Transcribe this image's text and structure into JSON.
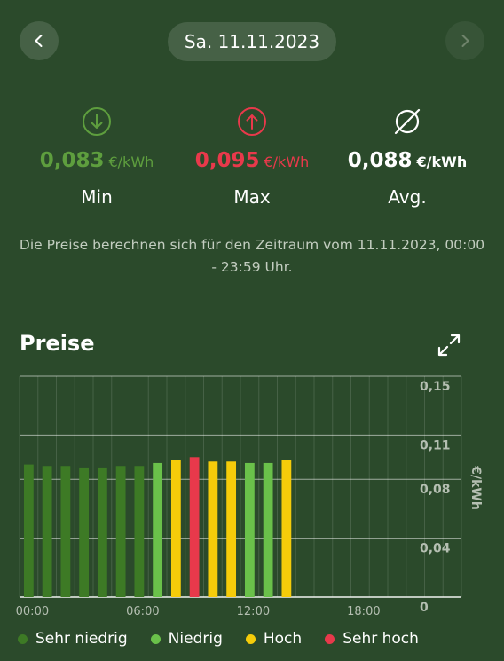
{
  "header": {
    "date": "Sa. 11.11.2023",
    "prev_icon": "chevron-left-icon",
    "next_icon": "chevron-right-icon"
  },
  "stats": {
    "min": {
      "value": "0,083",
      "unit": "€/kWh",
      "label": "Min",
      "icon": "arrow-down-circle-icon",
      "color": "#5e9e3e"
    },
    "max": {
      "value": "0,095",
      "unit": "€/kWh",
      "label": "Max",
      "icon": "arrow-up-circle-icon",
      "color": "#e8394b"
    },
    "avg": {
      "value": "0,088",
      "unit": "€/kWh",
      "label": "Avg.",
      "icon": "average-icon",
      "color": "#ffffff"
    }
  },
  "info_text": "Die Preise berechnen sich für den Zeitraum vom 11.11.2023, 00:00 - 23:59 Uhr.",
  "section_title": "Preise",
  "expand_icon": "expand-icon",
  "chart_data": {
    "type": "bar",
    "x": [
      0,
      1,
      2,
      3,
      4,
      5,
      6,
      7,
      8,
      9,
      10,
      11,
      12,
      13,
      14
    ],
    "values": [
      0.09,
      0.089,
      0.089,
      0.088,
      0.088,
      0.089,
      0.089,
      0.091,
      0.093,
      0.095,
      0.092,
      0.092,
      0.091,
      0.091,
      0.093
    ],
    "categories_level": [
      "sehr_niedrig",
      "sehr_niedrig",
      "sehr_niedrig",
      "sehr_niedrig",
      "sehr_niedrig",
      "sehr_niedrig",
      "sehr_niedrig",
      "niedrig",
      "hoch",
      "sehr_hoch",
      "hoch",
      "hoch",
      "niedrig",
      "niedrig",
      "hoch"
    ],
    "x_ticks": [
      "00:00",
      "06:00",
      "12:00",
      "18:00"
    ],
    "x_tick_hours": [
      0,
      6,
      12,
      18
    ],
    "xlim": [
      0,
      24
    ],
    "y_ticks": [
      "0",
      "0,04",
      "0,08",
      "0,11",
      "0,15"
    ],
    "y_tick_values": [
      0,
      0.04,
      0.08,
      0.11,
      0.15
    ],
    "ylim": [
      0,
      0.15
    ],
    "ylabel": "€/kWh",
    "grid": true,
    "legend_position": "bottom"
  },
  "legend": [
    {
      "key": "sehr_niedrig",
      "label": "Sehr niedrig",
      "color": "#3d7a25"
    },
    {
      "key": "niedrig",
      "label": "Niedrig",
      "color": "#6ac14a"
    },
    {
      "key": "hoch",
      "label": "Hoch",
      "color": "#f5cc0a"
    },
    {
      "key": "sehr_hoch",
      "label": "Sehr hoch",
      "color": "#e8394b"
    }
  ]
}
